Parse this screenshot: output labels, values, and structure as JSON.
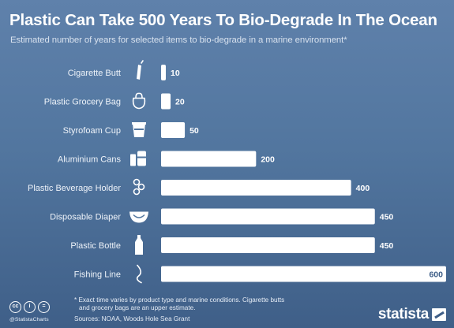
{
  "header": {
    "title": "Plastic Can Take 500 Years To Bio-Degrade In The Ocean",
    "subtitle": "Estimated number of years for selected items to bio-degrade in a marine environment*"
  },
  "chart_data": {
    "type": "bar",
    "orientation": "horizontal",
    "title": "Plastic Can Take 500 Years To Bio-Degrade In The Ocean",
    "subtitle": "Estimated number of years for selected items to bio-degrade in a marine environment*",
    "categories": [
      "Cigarette Butt",
      "Plastic Grocery Bag",
      "Styrofoam Cup",
      "Aluminium Cans",
      "Plastic Beverage Holder",
      "Disposable Diaper",
      "Plastic Bottle",
      "Fishing Line"
    ],
    "values": [
      10,
      20,
      50,
      200,
      400,
      450,
      450,
      600
    ],
    "icons": [
      "cigarette-butt-icon",
      "grocery-bag-icon",
      "cup-icon",
      "cans-icon",
      "beverage-holder-icon",
      "diaper-icon",
      "bottle-icon",
      "fishing-line-icon"
    ],
    "xlim": [
      0,
      600
    ],
    "grid": false,
    "bar_color": "#ffffff",
    "background_color": "#52769f"
  },
  "footer": {
    "footnote_line1": "* Exact time varies by product type and marine conditions. Cigarette butts",
    "footnote_line2": "and grocery bags are an upper estimate.",
    "source": "Sources: NOAA, Woods Hole Sea Grant",
    "handle": "@StatistaCharts",
    "brand": "statista",
    "license_icons": [
      "cc",
      "i",
      "="
    ]
  }
}
